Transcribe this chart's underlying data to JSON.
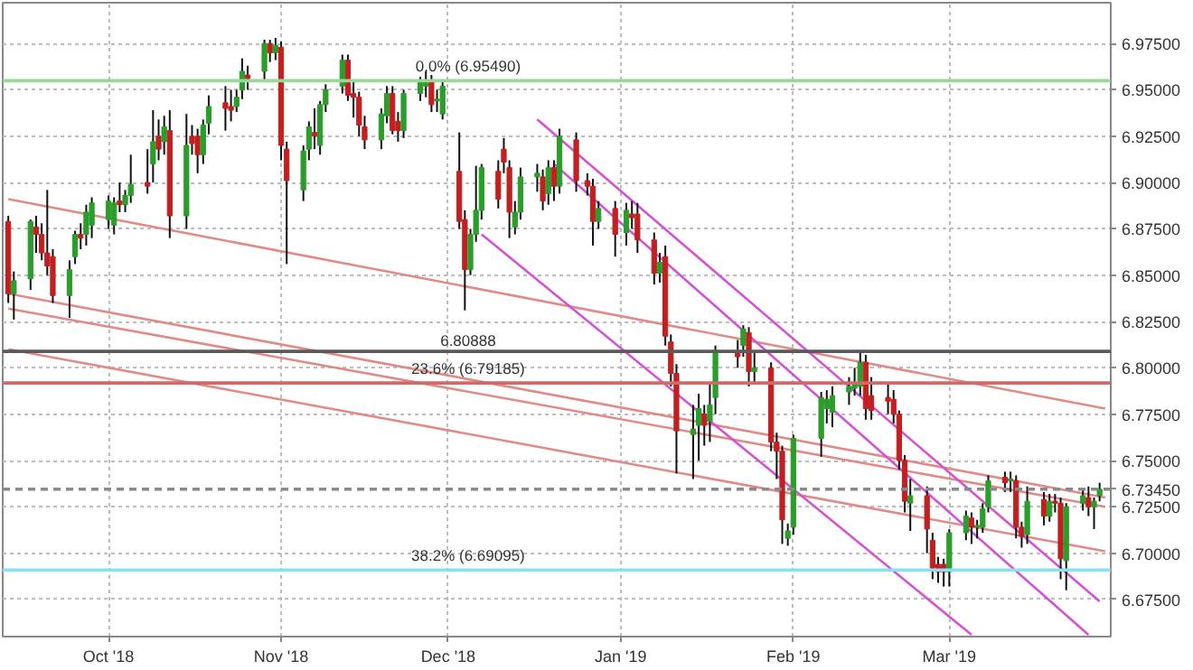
{
  "chart_data": {
    "type": "candlestick",
    "x": [
      "2018-09-13",
      "2018-09-14",
      "2018-09-17",
      "2018-09-18",
      "2018-09-19",
      "2018-09-20",
      "2018-09-21",
      "2018-09-24",
      "2018-09-25",
      "2018-09-26",
      "2018-09-27",
      "2018-09-28",
      "2018-10-01",
      "2018-10-02",
      "2018-10-03",
      "2018-10-04",
      "2018-10-05",
      "2018-10-08",
      "2018-10-09",
      "2018-10-10",
      "2018-10-11",
      "2018-10-12",
      "2018-10-15",
      "2018-10-16",
      "2018-10-17",
      "2018-10-18",
      "2018-10-19",
      "2018-10-22",
      "2018-10-23",
      "2018-10-24",
      "2018-10-25",
      "2018-10-26",
      "2018-10-29",
      "2018-10-30",
      "2018-10-31",
      "2018-11-01",
      "2018-11-02",
      "2018-11-05",
      "2018-11-06",
      "2018-11-07",
      "2018-11-08",
      "2018-11-09",
      "2018-11-12",
      "2018-11-13",
      "2018-11-14",
      "2018-11-15",
      "2018-11-16",
      "2018-11-19",
      "2018-11-20",
      "2018-11-21",
      "2018-11-22",
      "2018-11-23",
      "2018-11-26",
      "2018-11-27",
      "2018-11-28",
      "2018-11-29",
      "2018-11-30",
      "2018-12-03",
      "2018-12-04",
      "2018-12-05",
      "2018-12-06",
      "2018-12-07",
      "2018-12-10",
      "2018-12-11",
      "2018-12-12",
      "2018-12-13",
      "2018-12-14",
      "2018-12-17",
      "2018-12-18",
      "2018-12-19",
      "2018-12-20",
      "2018-12-21",
      "2018-12-24",
      "2018-12-26",
      "2018-12-27",
      "2018-12-28",
      "2018-12-31",
      "2019-01-02",
      "2019-01-03",
      "2019-01-04",
      "2019-01-07",
      "2019-01-08",
      "2019-01-09",
      "2019-01-10",
      "2019-01-11",
      "2019-01-14",
      "2019-01-15",
      "2019-01-16",
      "2019-01-17",
      "2019-01-18",
      "2019-01-22",
      "2019-01-23",
      "2019-01-24",
      "2019-01-25",
      "2019-01-28",
      "2019-01-29",
      "2019-01-30",
      "2019-01-31",
      "2019-02-01",
      "2019-02-06",
      "2019-02-07",
      "2019-02-08",
      "2019-02-11",
      "2019-02-12",
      "2019-02-13",
      "2019-02-14",
      "2019-02-15",
      "2019-02-18",
      "2019-02-19",
      "2019-02-20",
      "2019-02-21",
      "2019-02-22",
      "2019-02-25",
      "2019-02-26",
      "2019-02-27",
      "2019-02-28",
      "2019-03-01",
      "2019-03-04",
      "2019-03-05",
      "2019-03-06",
      "2019-03-07",
      "2019-03-08",
      "2019-03-11",
      "2019-03-12",
      "2019-03-13",
      "2019-03-14",
      "2019-03-15",
      "2019-03-18",
      "2019-03-19",
      "2019-03-20",
      "2019-03-21",
      "2019-03-22",
      "2019-03-25",
      "2019-03-26",
      "2019-03-27",
      "2019-03-28"
    ],
    "ohlc": [
      [
        6.879,
        6.882,
        6.835,
        6.84
      ],
      [
        6.84,
        6.852,
        6.826,
        6.847
      ],
      [
        6.848,
        6.88,
        6.842,
        6.879
      ],
      [
        6.876,
        6.882,
        6.862,
        6.872
      ],
      [
        6.872,
        6.878,
        6.858,
        6.862
      ],
      [
        6.862,
        6.896,
        6.85,
        6.855
      ],
      [
        6.86,
        6.864,
        6.835,
        6.839
      ],
      [
        6.839,
        6.858,
        6.827,
        6.853
      ],
      [
        6.86,
        6.874,
        6.856,
        6.872
      ],
      [
        6.872,
        6.878,
        6.864,
        6.87
      ],
      [
        6.872,
        6.888,
        6.866,
        6.884
      ],
      [
        6.877,
        6.892,
        6.87,
        6.889
      ],
      [
        6.88,
        6.893,
        6.875,
        6.89
      ],
      [
        6.877,
        6.892,
        6.872,
        6.889
      ],
      [
        6.89,
        6.9,
        6.884,
        6.888
      ],
      [
        6.888,
        6.896,
        6.884,
        6.893
      ],
      [
        6.893,
        6.915,
        6.889,
        6.899
      ],
      [
        6.9,
        6.918,
        6.894,
        6.898
      ],
      [
        6.91,
        6.939,
        6.9,
        6.922
      ],
      [
        6.925,
        6.934,
        6.912,
        6.918
      ],
      [
        6.922,
        6.936,
        6.915,
        6.93
      ],
      [
        6.928,
        6.939,
        6.87,
        6.882
      ],
      [
        6.882,
        6.937,
        6.875,
        6.92
      ],
      [
        6.925,
        6.931,
        6.915,
        6.921
      ],
      [
        6.925,
        6.929,
        6.905,
        6.915
      ],
      [
        6.915,
        6.934,
        6.91,
        6.931
      ],
      [
        6.932,
        6.947,
        6.926,
        6.941
      ],
      [
        6.943,
        6.952,
        6.928,
        6.94
      ],
      [
        6.941,
        6.95,
        6.933,
        6.939
      ],
      [
        6.941,
        6.95,
        6.938,
        6.946
      ],
      [
        6.95,
        6.967,
        6.945,
        6.96
      ],
      [
        6.958,
        6.963,
        6.95,
        6.956
      ],
      [
        6.96,
        6.977,
        6.955,
        6.975
      ],
      [
        6.975,
        6.977,
        6.965,
        6.97
      ],
      [
        6.97,
        6.978,
        6.966,
        6.974
      ],
      [
        6.973,
        6.976,
        6.912,
        6.92
      ],
      [
        6.918,
        6.922,
        6.856,
        6.901
      ],
      [
        6.896,
        6.92,
        6.89,
        6.917
      ],
      [
        6.918,
        6.933,
        6.912,
        6.93
      ],
      [
        6.927,
        6.94,
        6.918,
        6.925
      ],
      [
        6.92,
        6.944,
        6.915,
        6.942
      ],
      [
        6.942,
        6.953,
        6.938,
        6.95
      ],
      [
        6.952,
        6.969,
        6.948,
        6.966
      ],
      [
        6.966,
        6.969,
        6.944,
        6.947
      ],
      [
        6.948,
        6.955,
        6.935,
        6.946
      ],
      [
        6.946,
        6.949,
        6.925,
        6.931
      ],
      [
        6.93,
        6.936,
        6.918,
        6.923
      ],
      [
        6.923,
        6.94,
        6.918,
        6.937
      ],
      [
        6.936,
        6.952,
        6.932,
        6.948
      ],
      [
        6.948,
        6.952,
        6.926,
        6.928
      ],
      [
        6.933,
        6.938,
        6.922,
        6.928
      ],
      [
        6.928,
        6.95,
        6.924,
        6.948
      ],
      [
        6.948,
        6.957,
        6.944,
        6.955
      ],
      [
        6.952,
        6.96,
        6.946,
        6.955
      ],
      [
        6.955,
        6.958,
        6.938,
        6.942
      ],
      [
        6.944,
        6.95,
        6.938,
        6.945
      ],
      [
        6.937,
        6.955,
        6.934,
        6.952
      ],
      [
        6.906,
        6.927,
        6.875,
        6.879
      ],
      [
        6.88,
        6.885,
        6.831,
        6.853
      ],
      [
        6.853,
        6.875,
        6.85,
        6.872
      ],
      [
        6.872,
        6.909,
        6.868,
        6.885
      ],
      [
        6.885,
        6.91,
        6.88,
        6.908
      ],
      [
        6.906,
        6.912,
        6.886,
        6.891
      ],
      [
        6.918,
        6.924,
        6.905,
        6.911
      ],
      [
        6.908,
        6.912,
        6.87,
        6.884
      ],
      [
        6.876,
        6.89,
        6.872,
        6.884
      ],
      [
        6.884,
        6.908,
        6.88,
        6.903
      ],
      [
        6.903,
        6.91,
        6.895,
        6.905
      ],
      [
        6.903,
        6.907,
        6.885,
        6.89
      ],
      [
        6.894,
        6.912,
        6.888,
        6.908
      ],
      [
        6.908,
        6.912,
        6.89,
        6.898
      ],
      [
        6.898,
        6.929,
        6.894,
        6.925
      ],
      [
        6.923,
        6.927,
        6.895,
        6.901
      ],
      [
        6.901,
        6.905,
        6.893,
        6.898
      ],
      [
        6.898,
        6.902,
        6.866,
        6.879
      ],
      [
        6.879,
        6.89,
        6.875,
        6.886
      ],
      [
        6.886,
        6.89,
        6.86,
        6.872
      ],
      [
        6.873,
        6.889,
        6.866,
        6.885
      ],
      [
        6.883,
        6.89,
        6.875,
        6.881
      ],
      [
        6.883,
        6.889,
        6.862,
        6.869
      ],
      [
        6.869,
        6.873,
        6.845,
        6.851
      ],
      [
        6.851,
        6.862,
        6.846,
        6.857
      ],
      [
        6.86,
        6.866,
        6.812,
        6.817
      ],
      [
        6.814,
        6.818,
        6.79,
        6.797
      ],
      [
        6.797,
        6.802,
        6.743,
        6.766
      ],
      [
        6.764,
        6.78,
        6.74,
        6.767
      ],
      [
        6.769,
        6.786,
        6.75,
        6.778
      ],
      [
        6.775,
        6.78,
        6.758,
        6.769
      ],
      [
        6.771,
        6.792,
        6.76,
        6.78
      ],
      [
        6.784,
        6.812,
        6.775,
        6.808
      ],
      [
        6.808,
        6.815,
        6.8,
        6.806
      ],
      [
        6.812,
        6.823,
        6.806,
        6.821
      ],
      [
        6.819,
        6.822,
        6.79,
        6.798
      ],
      [
        6.798,
        6.808,
        6.792,
        6.8
      ],
      [
        6.8,
        6.803,
        6.755,
        6.76
      ],
      [
        6.76,
        6.765,
        6.74,
        6.755
      ],
      [
        6.755,
        6.758,
        6.705,
        6.718
      ],
      [
        6.708,
        6.716,
        6.704,
        6.712
      ],
      [
        6.714,
        6.764,
        6.71,
        6.762
      ],
      [
        6.762,
        6.787,
        6.752,
        6.784
      ],
      [
        6.778,
        6.788,
        6.77,
        6.783
      ],
      [
        6.776,
        6.79,
        6.768,
        6.785
      ],
      [
        6.787,
        6.795,
        6.78,
        6.79
      ],
      [
        6.789,
        6.8,
        6.785,
        6.791
      ],
      [
        6.79,
        6.808,
        6.785,
        6.803
      ],
      [
        6.803,
        6.807,
        6.772,
        6.778
      ],
      [
        6.785,
        6.795,
        6.772,
        6.777
      ],
      [
        6.784,
        6.792,
        6.775,
        6.782
      ],
      [
        6.783,
        6.788,
        6.77,
        6.775
      ],
      [
        6.775,
        6.777,
        6.745,
        6.75
      ],
      [
        6.75,
        6.753,
        6.722,
        6.728
      ],
      [
        6.727,
        6.74,
        6.712,
        6.731
      ],
      [
        6.731,
        6.736,
        6.7,
        6.713
      ],
      [
        6.707,
        6.711,
        6.686,
        6.692
      ],
      [
        6.694,
        6.698,
        6.684,
        6.69
      ],
      [
        6.694,
        6.697,
        6.682,
        6.69
      ],
      [
        6.69,
        6.713,
        6.682,
        6.711
      ],
      [
        6.711,
        6.723,
        6.707,
        6.72
      ],
      [
        6.719,
        6.722,
        6.705,
        6.714
      ],
      [
        6.714,
        6.718,
        6.708,
        6.715
      ],
      [
        6.714,
        6.727,
        6.711,
        6.724
      ],
      [
        6.725,
        6.742,
        6.722,
        6.739
      ],
      [
        6.741,
        6.744,
        6.733,
        6.738
      ],
      [
        6.739,
        6.744,
        6.733,
        6.74
      ],
      [
        6.739,
        6.742,
        6.708,
        6.714
      ],
      [
        6.714,
        6.717,
        6.703,
        6.709
      ],
      [
        6.71,
        6.736,
        6.705,
        6.728
      ],
      [
        6.729,
        6.733,
        6.715,
        6.72
      ],
      [
        6.72,
        6.732,
        6.717,
        6.728
      ],
      [
        6.728,
        6.732,
        6.722,
        6.727
      ],
      [
        6.727,
        6.73,
        6.686,
        6.697
      ],
      [
        6.696,
        6.727,
        6.68,
        6.725
      ],
      [
        6.727,
        6.734,
        6.723,
        6.731
      ],
      [
        6.73,
        6.736,
        6.72,
        6.725
      ],
      [
        6.725,
        6.73,
        6.713,
        6.728
      ],
      [
        6.731,
        6.738,
        6.728,
        6.7345
      ]
    ],
    "colors": [
      "#c22020",
      "#2a9d2a",
      "#2a9d2a",
      "#c22020",
      "#c22020",
      "#c22020",
      "#c22020",
      "#2a9d2a",
      "#2a9d2a",
      "#c22020",
      "#2a9d2a",
      "#2a9d2a",
      "#2a9d2a",
      "#2a9d2a",
      "#c22020",
      "#2a9d2a",
      "#2a9d2a",
      "#c22020",
      "#2a9d2a",
      "#c22020",
      "#2a9d2a",
      "#c22020",
      "#2a9d2a",
      "#c22020",
      "#c22020",
      "#2a9d2a",
      "#2a9d2a",
      "#c22020",
      "#c22020",
      "#2a9d2a",
      "#2a9d2a",
      "#c22020",
      "#2a9d2a",
      "#c22020",
      "#2a9d2a",
      "#c22020",
      "#c22020",
      "#2a9d2a",
      "#2a9d2a",
      "#c22020",
      "#2a9d2a",
      "#2a9d2a",
      "#2a9d2a",
      "#c22020",
      "#c22020",
      "#c22020",
      "#c22020",
      "#2a9d2a",
      "#2a9d2a",
      "#c22020",
      "#c22020",
      "#2a9d2a",
      "#2a9d2a",
      "#2a9d2a",
      "#c22020",
      "#2a9d2a",
      "#2a9d2a",
      "#c22020",
      "#c22020",
      "#2a9d2a",
      "#2a9d2a",
      "#2a9d2a",
      "#c22020",
      "#c22020",
      "#c22020",
      "#2a9d2a",
      "#2a9d2a",
      "#2a9d2a",
      "#c22020",
      "#2a9d2a",
      "#c22020",
      "#2a9d2a",
      "#c22020",
      "#c22020",
      "#c22020",
      "#2a9d2a",
      "#c22020",
      "#2a9d2a",
      "#c22020",
      "#c22020",
      "#c22020",
      "#2a9d2a",
      "#c22020",
      "#c22020",
      "#c22020",
      "#2a9d2a",
      "#2a9d2a",
      "#c22020",
      "#2a9d2a",
      "#2a9d2a",
      "#c22020",
      "#2a9d2a",
      "#c22020",
      "#2a9d2a",
      "#c22020",
      "#c22020",
      "#c22020",
      "#2a9d2a",
      "#2a9d2a",
      "#2a9d2a",
      "#2a9d2a",
      "#2a9d2a",
      "#2a9d2a",
      "#2a9d2a",
      "#2a9d2a",
      "#c22020",
      "#c22020",
      "#c22020",
      "#c22020",
      "#c22020",
      "#c22020",
      "#2a9d2a",
      "#c22020",
      "#c22020",
      "#c22020",
      "#c22020",
      "#2a9d2a",
      "#2a9d2a",
      "#c22020",
      "#2a9d2a",
      "#2a9d2a",
      "#2a9d2a",
      "#c22020",
      "#2a9d2a",
      "#c22020",
      "#c22020",
      "#2a9d2a",
      "#c22020",
      "#2a9d2a",
      "#c22020",
      "#c22020",
      "#2a9d2a",
      "#2a9d2a",
      "#c22020",
      "#2a9d2a",
      "#2a9d2a"
    ],
    "series": [
      {
        "type": "line",
        "color": "#e08a8a",
        "x": [
          "2018-09-13",
          "2019-03-29"
        ],
        "values": [
          6.891,
          6.778
        ]
      },
      {
        "type": "line",
        "color": "#e08a8a",
        "x": [
          "2018-09-13",
          "2019-03-29"
        ],
        "values": [
          6.84,
          6.73
        ]
      },
      {
        "type": "line",
        "color": "#e08a8a",
        "x": [
          "2018-09-13",
          "2019-03-29"
        ],
        "values": [
          6.832,
          6.725
        ]
      },
      {
        "type": "line",
        "color": "#e08a8a",
        "x": [
          "2018-09-13",
          "2019-03-29"
        ],
        "values": [
          6.81,
          6.701
        ]
      },
      {
        "type": "line",
        "color": "#d452d4",
        "x": [
          "2018-12-17",
          "2019-03-28"
        ],
        "values": [
          6.934,
          6.674
        ]
      },
      {
        "type": "line",
        "color": "#d452d4",
        "x": [
          "2018-12-20",
          "2019-03-26"
        ],
        "values": [
          6.91,
          6.656
        ]
      },
      {
        "type": "line",
        "color": "#d452d4",
        "x": [
          "2018-12-07",
          "2019-03-05"
        ],
        "values": [
          6.872,
          6.656
        ]
      }
    ],
    "ref_lines": [
      {
        "axis": "y",
        "value": 6.9549,
        "label": "0.0% (6.95490)",
        "color": "#9ad89a",
        "line_style": "solid"
      },
      {
        "axis": "y",
        "value": 6.80888,
        "label": "6.80888",
        "color": "#5a5a5a",
        "line_style": "solid"
      },
      {
        "axis": "y",
        "value": 6.79185,
        "label": "23.6% (6.79185)",
        "color": "#d06a6a",
        "line_style": "solid"
      },
      {
        "axis": "y",
        "value": 6.69095,
        "label": "38.2% (6.69095)",
        "color": "#86e2f0",
        "line_style": "solid"
      },
      {
        "axis": "y",
        "value": 6.7345,
        "label": "6.73450",
        "color": "#8a8a8a",
        "line_style": "dashed"
      }
    ],
    "xlim": [
      "2018-09-12",
      "2019-03-30"
    ],
    "ylim": [
      6.655,
      6.997
    ],
    "xticks": [
      {
        "value": "2018-10-01",
        "label": "Oct '18"
      },
      {
        "value": "2018-11-01",
        "label": "Nov '18"
      },
      {
        "value": "2018-12-01",
        "label": "Dec '18"
      },
      {
        "value": "2019-01-01",
        "label": "Jan '19"
      },
      {
        "value": "2019-02-01",
        "label": "Feb '19"
      },
      {
        "value": "2019-03-01",
        "label": "Mar '19"
      }
    ],
    "yticks": [
      {
        "value": 6.675,
        "label": "6.67500"
      },
      {
        "value": 6.7,
        "label": "6.70000"
      },
      {
        "value": 6.725,
        "label": "6.72500"
      },
      {
        "value": 6.75,
        "label": "6.75000"
      },
      {
        "value": 6.775,
        "label": "6.77500"
      },
      {
        "value": 6.8,
        "label": "6.80000"
      },
      {
        "value": 6.825,
        "label": "6.82500"
      },
      {
        "value": 6.85,
        "label": "6.85000"
      },
      {
        "value": 6.875,
        "label": "6.87500"
      },
      {
        "value": 6.9,
        "label": "6.90000"
      },
      {
        "value": 6.925,
        "label": "6.92500"
      },
      {
        "value": 6.95,
        "label": "6.95000"
      },
      {
        "value": 6.975,
        "label": "6.97500"
      }
    ],
    "grid": true,
    "marker": "none",
    "line_style": "solid"
  }
}
